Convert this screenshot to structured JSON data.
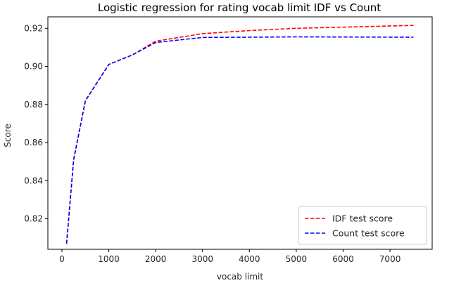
{
  "chart_data": {
    "type": "line",
    "title": "Logistic regression for rating vocab limit IDF vs Count",
    "xlabel": "vocab limit",
    "ylabel": "Score",
    "xlim": [
      -300,
      7900
    ],
    "ylim": [
      0.804,
      0.926
    ],
    "xticks": [
      0,
      1000,
      2000,
      3000,
      4000,
      5000,
      6000,
      7000
    ],
    "yticks": [
      0.82,
      0.84,
      0.86,
      0.88,
      0.9,
      0.92
    ],
    "ytick_labels": [
      "0.82",
      "0.84",
      "0.86",
      "0.88",
      "0.90",
      "0.92"
    ],
    "grid": false,
    "legend_position": "lower-right",
    "x": [
      100,
      250,
      500,
      1000,
      1500,
      2000,
      3000,
      4000,
      5000,
      7500
    ],
    "series": [
      {
        "name": "IDF test score",
        "color": "#ff0000",
        "style": "dashed",
        "values": [
          0.807,
          0.851,
          0.882,
          0.901,
          0.906,
          0.9132,
          0.9172,
          0.9188,
          0.92,
          0.9215
        ]
      },
      {
        "name": "Count test score",
        "color": "#0000ff",
        "style": "dashed",
        "values": [
          0.807,
          0.851,
          0.882,
          0.901,
          0.906,
          0.9125,
          0.9152,
          0.9153,
          0.9155,
          0.9153
        ]
      }
    ]
  }
}
